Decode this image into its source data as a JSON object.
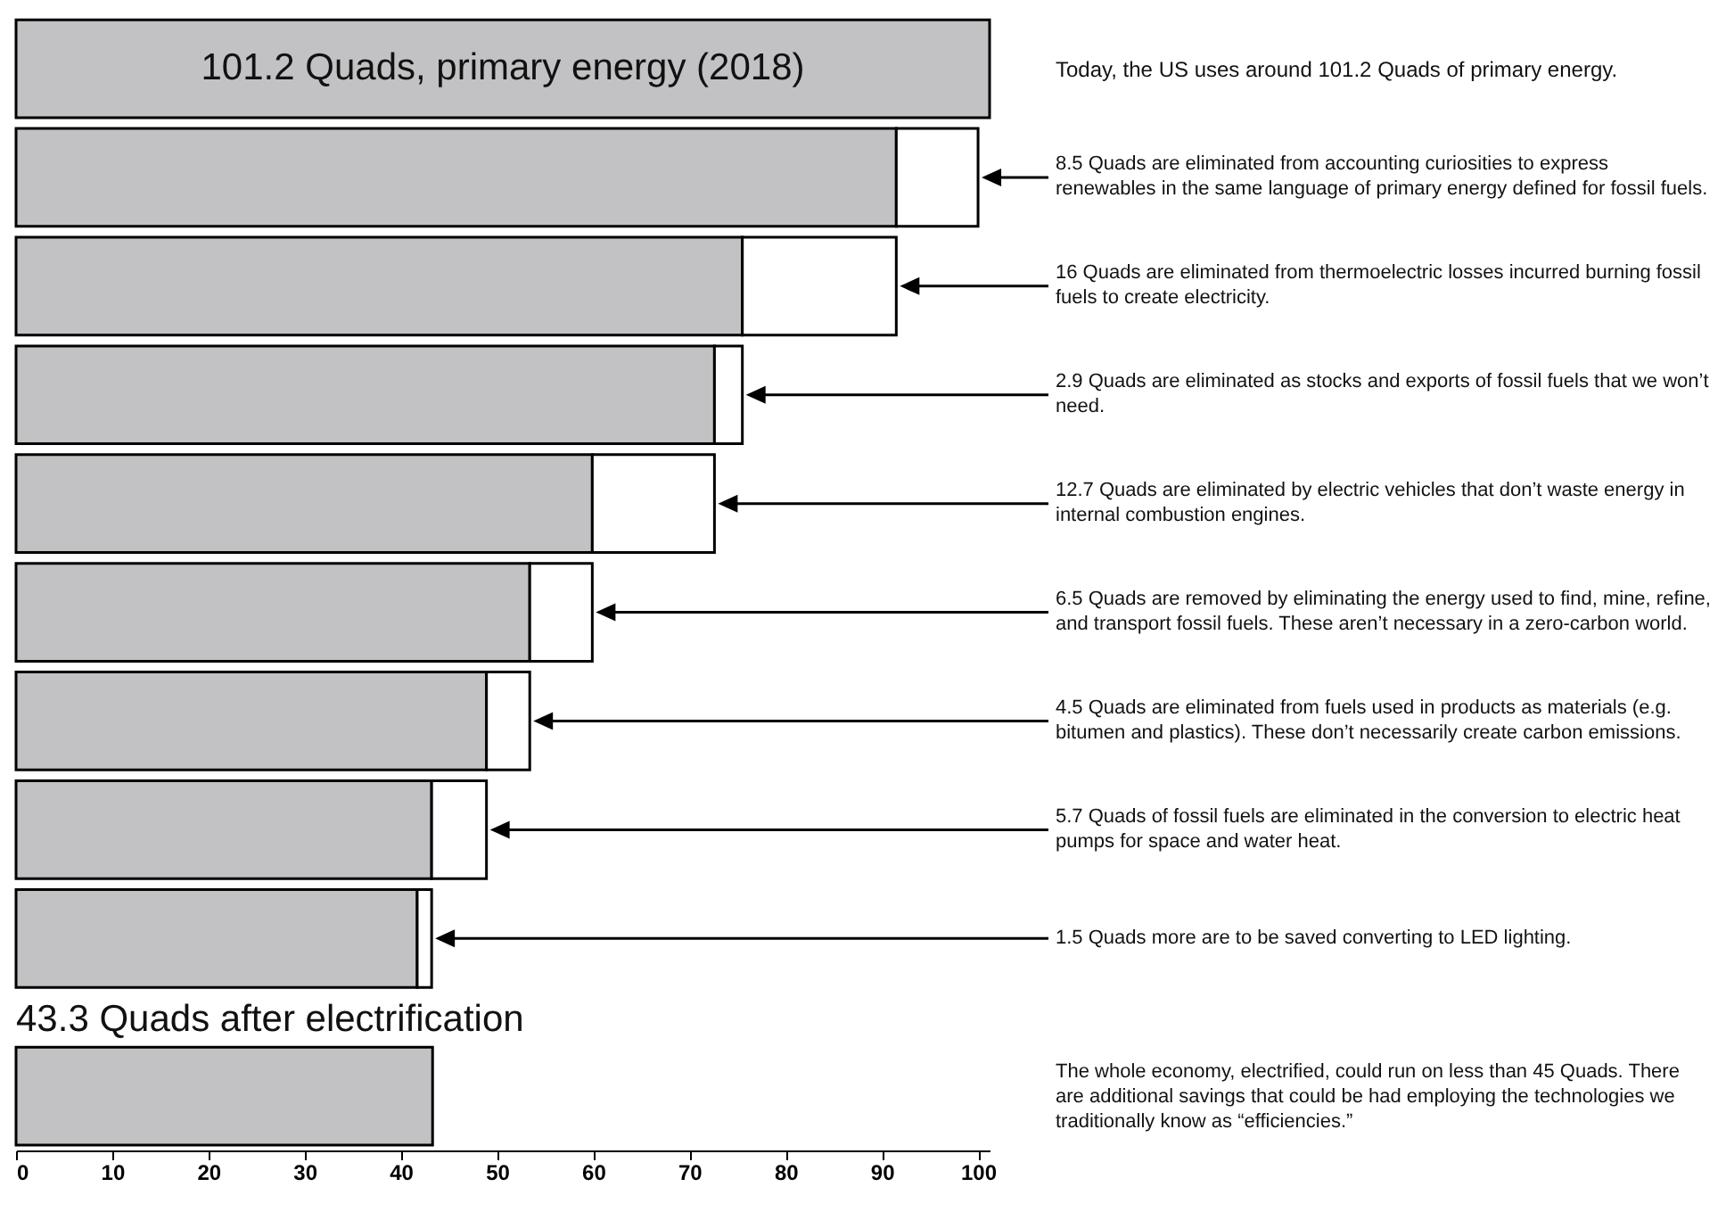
{
  "chart_data": {
    "type": "bar",
    "orientation": "horizontal",
    "stacked": true,
    "tick_labels": "x",
    "categories": [
      null,
      null,
      null,
      null,
      null,
      null,
      null,
      null,
      null,
      null
    ],
    "xlim": [
      0,
      101.2
    ],
    "xticks": [
      0,
      10,
      20,
      30,
      40,
      50,
      60,
      70,
      80,
      90,
      100
    ],
    "series": [
      {
        "color": "#c2c2c4",
        "values": [
          101.2,
          91.5,
          75.5,
          72.6,
          59.9,
          53.4,
          48.9,
          43.2,
          41.7,
          43.3
        ],
        "value_labels": [
          "101.2 Quads, primary energy (2018)",
          null,
          null,
          null,
          null,
          null,
          null,
          null,
          null,
          "43.3 Quads after electrification"
        ]
      },
      {
        "color": "#ffffff",
        "values": [
          null,
          8.5,
          16,
          2.9,
          12.7,
          6.5,
          4.5,
          5.7,
          1.5,
          null
        ]
      }
    ],
    "annotations": [
      "Today, the US uses around 101.2 Quads of primary energy.",
      "8.5 Quads are eliminated from accounting curiosities to express renewables in the same language of primary energy defined for fossil fuels.",
      "16 Quads are eliminated from thermoelectric losses incurred burning fossil fuels to create electricity.",
      "2.9 Quads are eliminated as stocks and exports of fossil fuels that we won’t need.",
      "12.7 Quads are eliminated by electric vehicles that don’t waste energy in internal combustion engines.",
      "6.5 Quads are removed by eliminating the energy used to find, mine, refine, and transport fossil fuels. These aren’t necessary in a zero-carbon world.",
      "4.5 Quads are eliminated from fuels used in products as materials (e.g. bitumen and plastics). These don’t necessarily create carbon emissions.",
      "5.7 Quads of fossil fuels are eliminated in the conversion to electric heat pumps for space and water heat.",
      "1.5 Quads more are to be saved converting to LED lighting.",
      "The whole economy, electrified, could run on less than 45 Quads.  There are additional savings that could be had employing the technologies we traditionally know as “efficiencies.”"
    ]
  }
}
